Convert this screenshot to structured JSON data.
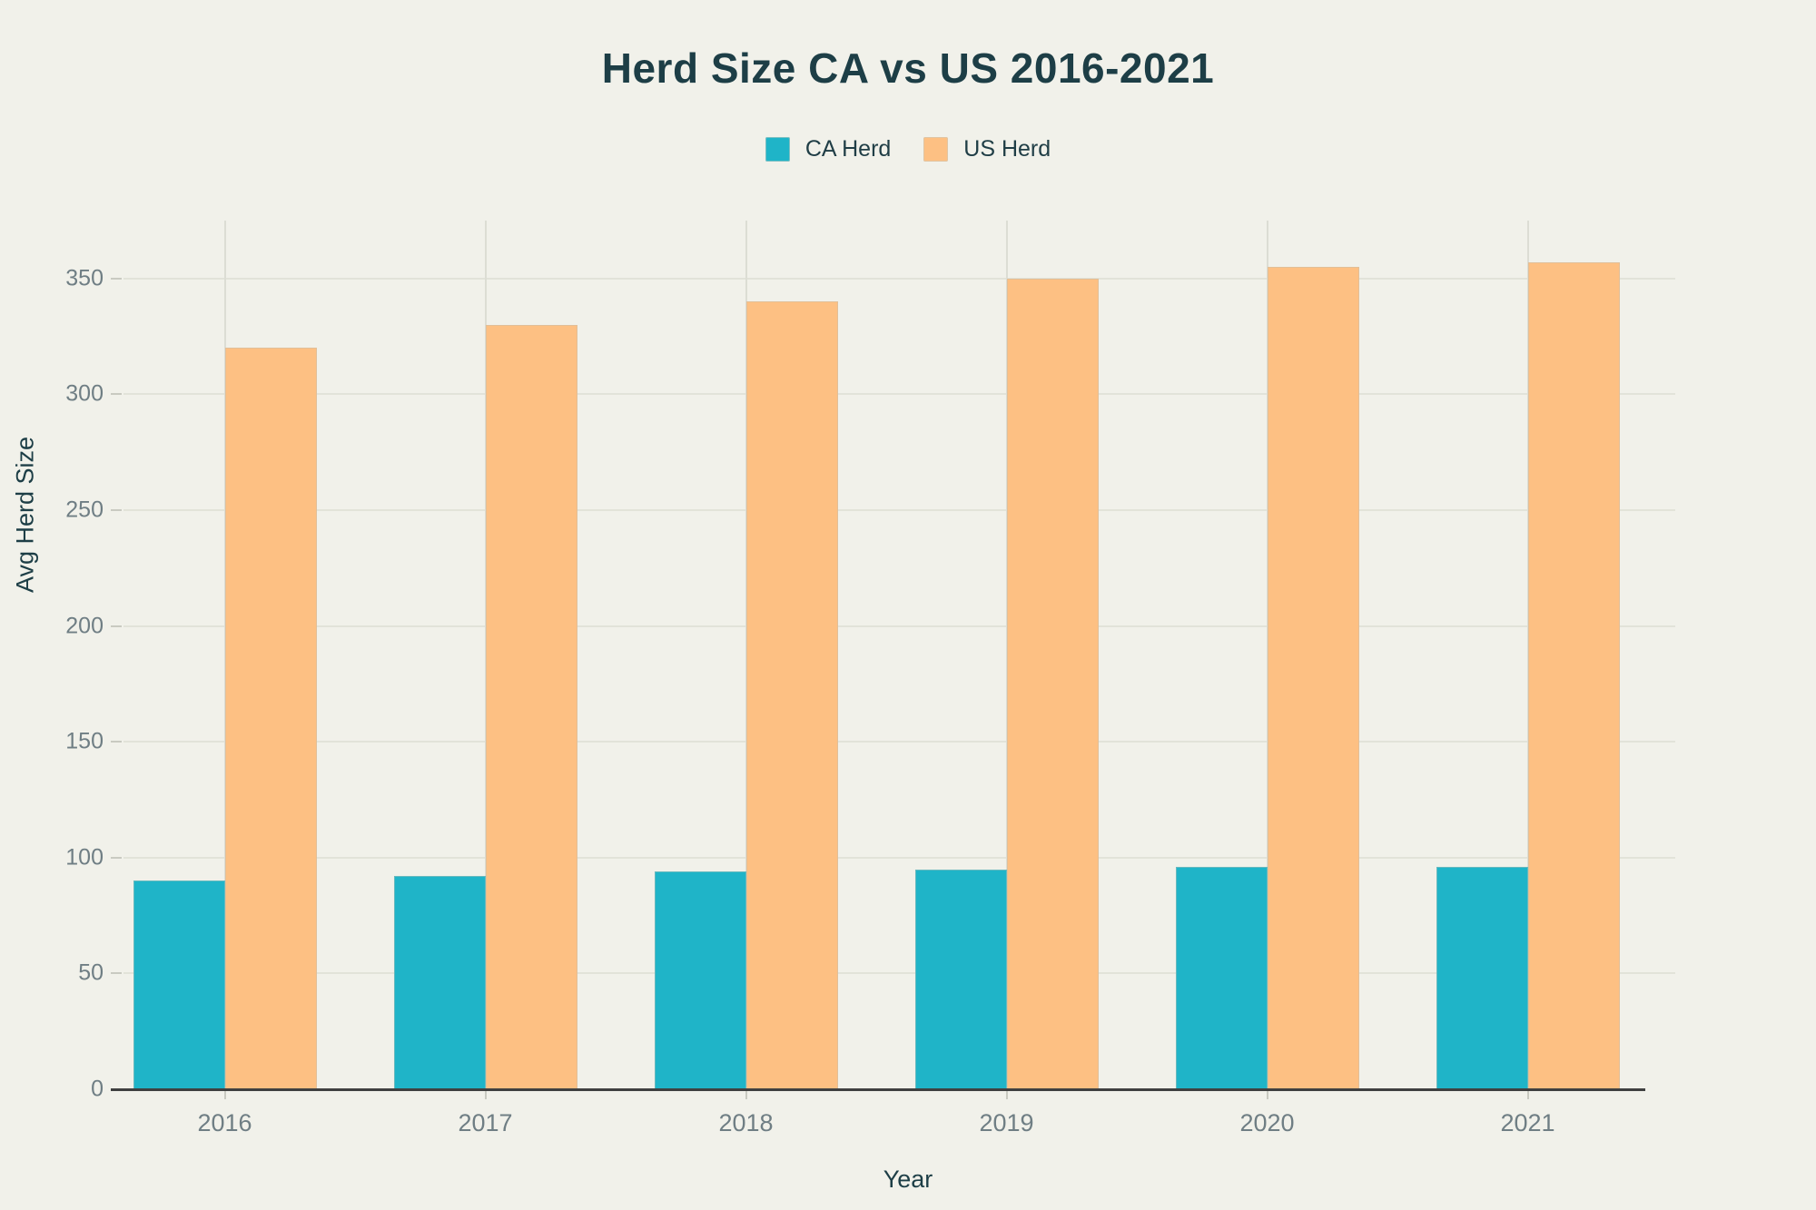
{
  "page": {
    "background_color": "#f1f1ea"
  },
  "chart_data": {
    "type": "bar",
    "title": "Herd Size CA vs US 2016-2021",
    "xlabel": "Year",
    "ylabel": "Avg Herd Size",
    "categories": [
      "2016",
      "2017",
      "2018",
      "2019",
      "2020",
      "2021"
    ],
    "series": [
      {
        "name": "CA Herd",
        "color": "#1fb4c8",
        "values": [
          90,
          92,
          94,
          95,
          96,
          96
        ]
      },
      {
        "name": "US Herd",
        "color": "#fdc083",
        "values": [
          320,
          330,
          340,
          350,
          355,
          357
        ]
      }
    ],
    "ylim": [
      0,
      375
    ],
    "yticks": [
      0,
      50,
      100,
      150,
      200,
      250,
      300,
      350
    ],
    "legend_position": "top-center",
    "grid": {
      "horizontal": true,
      "vertical": "category-centers"
    },
    "colors": {
      "title_text": "#1d3e46",
      "axis_title_text": "#1d3e46",
      "tick_label_text": "#6f7e84",
      "gridline": "#e2e3d9",
      "axis_line": "#3f4040",
      "background": "#f1f1ea"
    }
  }
}
